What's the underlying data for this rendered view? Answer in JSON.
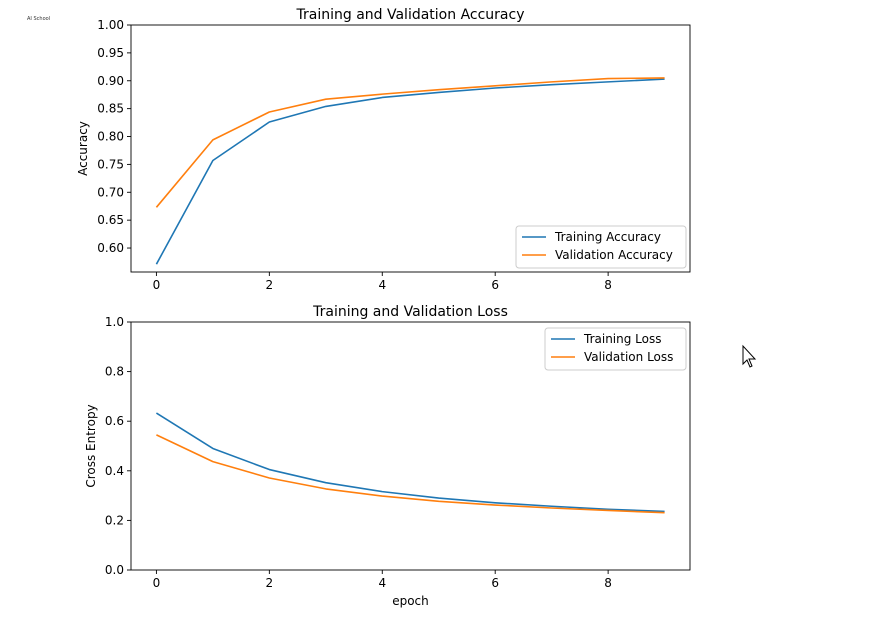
{
  "logo_text": "AI School",
  "colors": {
    "training": "#1f77b4",
    "validation": "#ff7f0e",
    "axes": "#000000"
  },
  "chart_data": [
    {
      "type": "line",
      "title": "Training and Validation Accuracy",
      "xlabel": "",
      "ylabel": "Accuracy",
      "x": [
        0,
        1,
        2,
        3,
        4,
        5,
        6,
        7,
        8,
        9
      ],
      "xlim": [
        -0.45,
        9.45
      ],
      "ylim": [
        0.557,
        1.0
      ],
      "xticks": [
        0,
        2,
        4,
        6,
        8
      ],
      "xtick_labels": [
        "0",
        "2",
        "4",
        "6",
        "8"
      ],
      "yticks": [
        0.6,
        0.65,
        0.7,
        0.75,
        0.8,
        0.85,
        0.9,
        0.95,
        1.0
      ],
      "ytick_labels": [
        "0.60",
        "0.65",
        "0.70",
        "0.75",
        "0.80",
        "0.85",
        "0.90",
        "0.95",
        "1.00"
      ],
      "legend_position": "lower right",
      "series": [
        {
          "name": "Training Accuracy",
          "color_key": "training",
          "values": [
            0.571,
            0.757,
            0.826,
            0.854,
            0.87,
            0.879,
            0.887,
            0.893,
            0.898,
            0.903
          ]
        },
        {
          "name": "Validation Accuracy",
          "color_key": "validation",
          "values": [
            0.673,
            0.794,
            0.844,
            0.867,
            0.876,
            0.884,
            0.891,
            0.898,
            0.904,
            0.905
          ]
        }
      ]
    },
    {
      "type": "line",
      "title": "Training and Validation Loss",
      "xlabel": "epoch",
      "ylabel": "Cross Entropy",
      "x": [
        0,
        1,
        2,
        3,
        4,
        5,
        6,
        7,
        8,
        9
      ],
      "xlim": [
        -0.45,
        9.45
      ],
      "ylim": [
        0.0,
        1.0
      ],
      "xticks": [
        0,
        2,
        4,
        6,
        8
      ],
      "xtick_labels": [
        "0",
        "2",
        "4",
        "6",
        "8"
      ],
      "yticks": [
        0.0,
        0.2,
        0.4,
        0.6,
        0.8,
        1.0
      ],
      "ytick_labels": [
        "0.0",
        "0.2",
        "0.4",
        "0.6",
        "0.8",
        "1.0"
      ],
      "legend_position": "upper right",
      "series": [
        {
          "name": "Training Loss",
          "color_key": "training",
          "values": [
            0.633,
            0.49,
            0.405,
            0.352,
            0.316,
            0.29,
            0.271,
            0.257,
            0.245,
            0.236
          ]
        },
        {
          "name": "Validation Loss",
          "color_key": "validation",
          "values": [
            0.545,
            0.437,
            0.371,
            0.327,
            0.298,
            0.277,
            0.262,
            0.25,
            0.24,
            0.231
          ]
        }
      ]
    }
  ]
}
